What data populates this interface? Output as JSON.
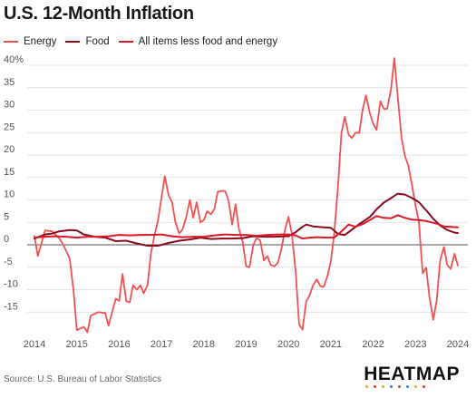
{
  "chart_data": {
    "type": "line",
    "title": "U.S. 12-Month Inflation",
    "xlabel": "",
    "ylabel": "",
    "x_ticks": [
      "2014",
      "2015",
      "2016",
      "2017",
      "2018",
      "2019",
      "2020",
      "2021",
      "2022",
      "2023",
      "2024"
    ],
    "y_ticks": [
      "40%",
      "35",
      "30",
      "25",
      "20",
      "15",
      "10",
      "5",
      "0",
      "-5",
      "-10",
      "-15"
    ],
    "ylim": [
      -20,
      42
    ],
    "xlim": [
      2014,
      2024.2
    ],
    "grid": true,
    "legend_position": "top-left",
    "series": [
      {
        "name": "Energy",
        "color": "#f05252",
        "points": [
          [
            2014.0,
            2
          ],
          [
            2014.08,
            -2.5
          ],
          [
            2014.25,
            3.2
          ],
          [
            2014.42,
            3
          ],
          [
            2014.58,
            1.5
          ],
          [
            2014.67,
            0.2
          ],
          [
            2014.83,
            -3
          ],
          [
            2014.92,
            -10
          ],
          [
            2015.0,
            -19
          ],
          [
            2015.17,
            -18.3
          ],
          [
            2015.25,
            -19.5
          ],
          [
            2015.33,
            -15.8
          ],
          [
            2015.5,
            -15
          ],
          [
            2015.67,
            -15.2
          ],
          [
            2015.75,
            -18
          ],
          [
            2015.92,
            -12
          ],
          [
            2016.0,
            -12.5
          ],
          [
            2016.08,
            -6.5
          ],
          [
            2016.17,
            -12.6
          ],
          [
            2016.25,
            -12.8
          ],
          [
            2016.33,
            -9
          ],
          [
            2016.42,
            -10
          ],
          [
            2016.5,
            -9
          ],
          [
            2016.58,
            -10.8
          ],
          [
            2016.67,
            -9
          ],
          [
            2016.75,
            -2
          ],
          [
            2016.83,
            2
          ],
          [
            2016.92,
            5.5
          ],
          [
            2017.0,
            10.5
          ],
          [
            2017.08,
            15.3
          ],
          [
            2017.17,
            11
          ],
          [
            2017.25,
            9.5
          ],
          [
            2017.33,
            5
          ],
          [
            2017.42,
            2.5
          ],
          [
            2017.5,
            3.5
          ],
          [
            2017.58,
            6
          ],
          [
            2017.67,
            10
          ],
          [
            2017.75,
            6
          ],
          [
            2017.83,
            9.5
          ],
          [
            2017.92,
            5
          ],
          [
            2018.0,
            5.5
          ],
          [
            2018.08,
            7.5
          ],
          [
            2018.17,
            6.8
          ],
          [
            2018.25,
            8
          ],
          [
            2018.33,
            11.8
          ],
          [
            2018.42,
            12
          ],
          [
            2018.5,
            12
          ],
          [
            2018.58,
            10
          ],
          [
            2018.67,
            4.5
          ],
          [
            2018.75,
            9
          ],
          [
            2018.83,
            3.5
          ],
          [
            2018.92,
            0.5
          ],
          [
            2019.0,
            -4.8
          ],
          [
            2019.08,
            -5
          ],
          [
            2019.17,
            0
          ],
          [
            2019.25,
            1.5
          ],
          [
            2019.33,
            1
          ],
          [
            2019.42,
            -3.5
          ],
          [
            2019.5,
            -2.5
          ],
          [
            2019.58,
            -4.5
          ],
          [
            2019.67,
            -4.8
          ],
          [
            2019.75,
            -4
          ],
          [
            2019.83,
            -1
          ],
          [
            2019.92,
            3.5
          ],
          [
            2020.0,
            6.2
          ],
          [
            2020.08,
            2.5
          ],
          [
            2020.17,
            -6
          ],
          [
            2020.25,
            -17.7
          ],
          [
            2020.33,
            -18.9
          ],
          [
            2020.42,
            -12.6
          ],
          [
            2020.5,
            -11.2
          ],
          [
            2020.58,
            -9
          ],
          [
            2020.67,
            -7.7
          ],
          [
            2020.75,
            -9.2
          ],
          [
            2020.83,
            -9.4
          ],
          [
            2020.92,
            -7
          ],
          [
            2021.0,
            -3.6
          ],
          [
            2021.08,
            2.4
          ],
          [
            2021.17,
            13
          ],
          [
            2021.25,
            25
          ],
          [
            2021.33,
            28.5
          ],
          [
            2021.42,
            24.5
          ],
          [
            2021.5,
            23.8
          ],
          [
            2021.58,
            25
          ],
          [
            2021.67,
            24.9
          ],
          [
            2021.75,
            30
          ],
          [
            2021.83,
            33.3
          ],
          [
            2021.92,
            29.3
          ],
          [
            2022.0,
            27
          ],
          [
            2022.08,
            25.6
          ],
          [
            2022.17,
            32
          ],
          [
            2022.25,
            30.3
          ],
          [
            2022.33,
            30.3
          ],
          [
            2022.42,
            34.6
          ],
          [
            2022.5,
            41.6
          ],
          [
            2022.58,
            32.9
          ],
          [
            2022.67,
            23.8
          ],
          [
            2022.75,
            19.8
          ],
          [
            2022.83,
            17.6
          ],
          [
            2022.92,
            13.1
          ],
          [
            2023.0,
            8.7
          ],
          [
            2023.08,
            5.2
          ],
          [
            2023.17,
            -6.4
          ],
          [
            2023.25,
            -5.1
          ],
          [
            2023.33,
            -11.7
          ],
          [
            2023.42,
            -16.7
          ],
          [
            2023.5,
            -12.5
          ],
          [
            2023.58,
            -3.6
          ],
          [
            2023.67,
            -0.5
          ],
          [
            2023.75,
            -4.5
          ],
          [
            2023.83,
            -5.4
          ],
          [
            2023.92,
            -2
          ],
          [
            2024.0,
            -4.6
          ]
        ]
      },
      {
        "name": "Food",
        "color": "#8b0a1e",
        "points": [
          [
            2014.0,
            1.4
          ],
          [
            2014.25,
            2.3
          ],
          [
            2014.42,
            2.5
          ],
          [
            2014.58,
            3.0
          ],
          [
            2014.83,
            3.3
          ],
          [
            2015.0,
            3.2
          ],
          [
            2015.17,
            2.3
          ],
          [
            2015.42,
            1.8
          ],
          [
            2015.67,
            1.6
          ],
          [
            2015.92,
            0.8
          ],
          [
            2016.17,
            0.9
          ],
          [
            2016.42,
            0.3
          ],
          [
            2016.67,
            -0.2
          ],
          [
            2016.92,
            -0.2
          ],
          [
            2017.17,
            0.4
          ],
          [
            2017.42,
            0.9
          ],
          [
            2017.67,
            1.2
          ],
          [
            2017.92,
            1.6
          ],
          [
            2018.17,
            1.3
          ],
          [
            2018.42,
            1.4
          ],
          [
            2018.67,
            1.4
          ],
          [
            2018.92,
            1.5
          ],
          [
            2019.17,
            1.9
          ],
          [
            2019.42,
            1.8
          ],
          [
            2019.67,
            1.8
          ],
          [
            2019.92,
            1.9
          ],
          [
            2020.0,
            1.9
          ],
          [
            2020.17,
            2.8
          ],
          [
            2020.33,
            4.0
          ],
          [
            2020.42,
            4.5
          ],
          [
            2020.58,
            4.1
          ],
          [
            2020.83,
            3.9
          ],
          [
            2021.0,
            3.8
          ],
          [
            2021.17,
            2.4
          ],
          [
            2021.33,
            2.2
          ],
          [
            2021.5,
            3.4
          ],
          [
            2021.67,
            4.6
          ],
          [
            2021.92,
            6.2
          ],
          [
            2022.08,
            7.9
          ],
          [
            2022.25,
            9.4
          ],
          [
            2022.42,
            10.4
          ],
          [
            2022.58,
            11.4
          ],
          [
            2022.75,
            11.2
          ],
          [
            2022.92,
            10.4
          ],
          [
            2023.08,
            9.5
          ],
          [
            2023.25,
            7.7
          ],
          [
            2023.42,
            5.8
          ],
          [
            2023.58,
            4.3
          ],
          [
            2023.75,
            3.3
          ],
          [
            2023.92,
            2.7
          ],
          [
            2024.0,
            2.6
          ]
        ]
      },
      {
        "name": "All items less food and energy",
        "color": "#d8192a",
        "points": [
          [
            2014.0,
            1.6
          ],
          [
            2014.25,
            1.8
          ],
          [
            2014.5,
            1.9
          ],
          [
            2014.75,
            1.8
          ],
          [
            2015.0,
            1.6
          ],
          [
            2015.25,
            1.8
          ],
          [
            2015.5,
            1.8
          ],
          [
            2015.75,
            1.9
          ],
          [
            2016.0,
            2.2
          ],
          [
            2016.25,
            2.1
          ],
          [
            2016.5,
            2.2
          ],
          [
            2016.75,
            2.2
          ],
          [
            2017.0,
            2.3
          ],
          [
            2017.25,
            1.9
          ],
          [
            2017.5,
            1.7
          ],
          [
            2017.75,
            1.8
          ],
          [
            2018.0,
            1.8
          ],
          [
            2018.25,
            2.1
          ],
          [
            2018.5,
            2.3
          ],
          [
            2018.75,
            2.2
          ],
          [
            2019.0,
            2.2
          ],
          [
            2019.25,
            2.0
          ],
          [
            2019.5,
            2.2
          ],
          [
            2019.75,
            2.3
          ],
          [
            2020.0,
            2.3
          ],
          [
            2020.17,
            2.1
          ],
          [
            2020.33,
            1.4
          ],
          [
            2020.5,
            1.6
          ],
          [
            2020.67,
            1.7
          ],
          [
            2020.92,
            1.6
          ],
          [
            2021.08,
            1.6
          ],
          [
            2021.25,
            3.0
          ],
          [
            2021.42,
            4.5
          ],
          [
            2021.58,
            4.0
          ],
          [
            2021.75,
            4.6
          ],
          [
            2021.92,
            5.5
          ],
          [
            2022.08,
            6.4
          ],
          [
            2022.25,
            6.0
          ],
          [
            2022.42,
            5.9
          ],
          [
            2022.58,
            6.6
          ],
          [
            2022.75,
            6.0
          ],
          [
            2022.92,
            5.6
          ],
          [
            2023.08,
            5.5
          ],
          [
            2023.25,
            5.3
          ],
          [
            2023.5,
            4.7
          ],
          [
            2023.67,
            4.1
          ],
          [
            2023.83,
            4.0
          ],
          [
            2024.0,
            3.9
          ]
        ]
      }
    ]
  },
  "footer": {
    "source": "Source: U.S. Bureau of Labor Statistics",
    "brand": "HEATMAP",
    "brand_dot_colors": [
      "#f5a623",
      "#e0362c",
      "#f5a623",
      "#3b7dd8",
      "#e0362c",
      "#3b7dd8",
      "#f5a623",
      "#e0362c"
    ]
  },
  "colors": {
    "grid": "#dcdcdc",
    "zero_line": "#555555",
    "tick_label": "#555555"
  }
}
